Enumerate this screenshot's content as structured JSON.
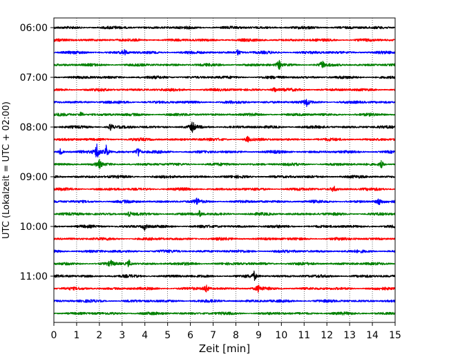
{
  "chart_data": {
    "type": "line",
    "title": "",
    "xlabel": "Zeit  [min]",
    "ylabel": "UTC (Lokalzeit = UTC + 02:00)",
    "xlim": [
      0,
      15
    ],
    "x_ticks": [
      "0",
      "1",
      "2",
      "3",
      "4",
      "5",
      "6",
      "7",
      "8",
      "9",
      "10",
      "11",
      "12",
      "13",
      "14",
      "15"
    ],
    "y_tick_labels": [
      "06:00",
      "07:00",
      "08:00",
      "09:00",
      "10:00",
      "11:00"
    ],
    "grid": "vertical dotted at each minute",
    "row_interval_min": 15,
    "trace_colors": [
      "#000000",
      "#ff0000",
      "#0000ff",
      "#008000"
    ],
    "rows": [
      {
        "start": "06:00",
        "color": "#000000"
      },
      {
        "start": "06:15",
        "color": "#ff0000"
      },
      {
        "start": "06:30",
        "color": "#0000ff"
      },
      {
        "start": "06:45",
        "color": "#008000"
      },
      {
        "start": "07:00",
        "color": "#000000"
      },
      {
        "start": "07:15",
        "color": "#ff0000"
      },
      {
        "start": "07:30",
        "color": "#0000ff"
      },
      {
        "start": "07:45",
        "color": "#008000"
      },
      {
        "start": "08:00",
        "color": "#000000"
      },
      {
        "start": "08:15",
        "color": "#ff0000"
      },
      {
        "start": "08:30",
        "color": "#0000ff"
      },
      {
        "start": "08:45",
        "color": "#008000"
      },
      {
        "start": "09:00",
        "color": "#000000"
      },
      {
        "start": "09:15",
        "color": "#ff0000"
      },
      {
        "start": "09:30",
        "color": "#0000ff"
      },
      {
        "start": "09:45",
        "color": "#008000"
      },
      {
        "start": "10:00",
        "color": "#000000"
      },
      {
        "start": "10:15",
        "color": "#ff0000"
      },
      {
        "start": "10:30",
        "color": "#0000ff"
      },
      {
        "start": "10:45",
        "color": "#008000"
      },
      {
        "start": "11:00",
        "color": "#000000"
      },
      {
        "start": "11:15",
        "color": "#ff0000"
      },
      {
        "start": "11:30",
        "color": "#0000ff"
      },
      {
        "start": "11:45",
        "color": "#008000"
      }
    ],
    "events": [
      {
        "row": 2,
        "minute": 3.1,
        "amp": 0.25
      },
      {
        "row": 2,
        "minute": 8.1,
        "amp": 0.25
      },
      {
        "row": 3,
        "minute": 9.9,
        "amp": 0.35
      },
      {
        "row": 3,
        "minute": 11.8,
        "amp": 0.3
      },
      {
        "row": 5,
        "minute": 9.7,
        "amp": 0.25
      },
      {
        "row": 6,
        "minute": 11.1,
        "amp": 0.3
      },
      {
        "row": 7,
        "minute": 1.2,
        "amp": 0.25
      },
      {
        "row": 8,
        "minute": 6.1,
        "amp": 0.45
      },
      {
        "row": 8,
        "minute": 2.5,
        "amp": 0.3
      },
      {
        "row": 9,
        "minute": 8.5,
        "amp": 0.25
      },
      {
        "row": 10,
        "minute": 1.9,
        "amp": 0.8
      },
      {
        "row": 10,
        "minute": 2.3,
        "amp": 0.55
      },
      {
        "row": 10,
        "minute": 3.7,
        "amp": 0.5
      },
      {
        "row": 10,
        "minute": 0.3,
        "amp": 0.3
      },
      {
        "row": 11,
        "minute": 2.0,
        "amp": 0.3
      },
      {
        "row": 11,
        "minute": 14.4,
        "amp": 0.3
      },
      {
        "row": 13,
        "minute": 12.3,
        "amp": 0.25
      },
      {
        "row": 14,
        "minute": 6.3,
        "amp": 0.3
      },
      {
        "row": 14,
        "minute": 14.3,
        "amp": 0.3
      },
      {
        "row": 15,
        "minute": 3.3,
        "amp": 0.3
      },
      {
        "row": 15,
        "minute": 6.4,
        "amp": 0.25
      },
      {
        "row": 16,
        "minute": 4.0,
        "amp": 0.3
      },
      {
        "row": 19,
        "minute": 3.3,
        "amp": 0.3
      },
      {
        "row": 19,
        "minute": 2.5,
        "amp": 0.25
      },
      {
        "row": 20,
        "minute": 8.8,
        "amp": 0.35
      },
      {
        "row": 21,
        "minute": 6.7,
        "amp": 0.35
      },
      {
        "row": 21,
        "minute": 9.0,
        "amp": 0.3
      }
    ]
  }
}
